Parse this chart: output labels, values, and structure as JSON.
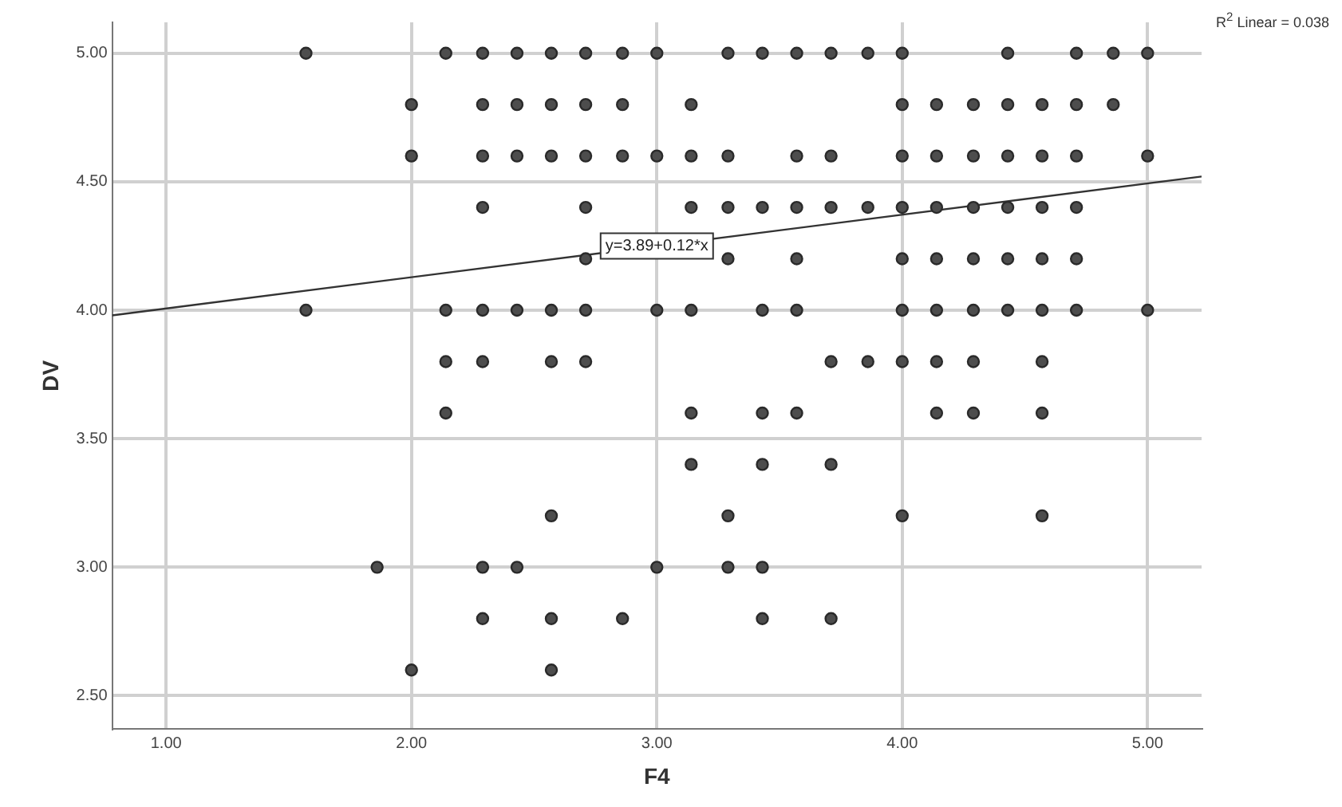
{
  "chart_data": {
    "type": "scatter",
    "xlabel": "F4",
    "ylabel": "DV",
    "xlim": [
      0.78,
      5.22
    ],
    "ylim": [
      2.37,
      5.12
    ],
    "xticks": [
      {
        "value": 1,
        "label": "1.00"
      },
      {
        "value": 2,
        "label": "2.00"
      },
      {
        "value": 3,
        "label": "3.00"
      },
      {
        "value": 4,
        "label": "4.00"
      },
      {
        "value": 5,
        "label": "5.00"
      }
    ],
    "yticks": [
      {
        "value": 2.5,
        "label": "2.50"
      },
      {
        "value": 3,
        "label": "3.00"
      },
      {
        "value": 3.5,
        "label": "3.50"
      },
      {
        "value": 4,
        "label": "4.00"
      },
      {
        "value": 4.5,
        "label": "4.50"
      },
      {
        "value": 5,
        "label": "5.00"
      }
    ],
    "grid": true,
    "legend": false,
    "marker": "circle",
    "annotations": [
      {
        "text": "y=3.89+0.12*x",
        "x": 3.0,
        "y": 4.25
      },
      "R$^{2}$ Linear = 0.038"
    ],
    "series": [
      {
        "color": "#4d4d4d",
        "x": [
          1.57,
          2.14,
          2.29,
          2.43,
          2.57,
          2.71,
          2.86,
          3.0,
          3.29,
          3.43,
          3.57,
          3.71,
          3.86,
          4.0,
          4.43,
          4.71,
          4.86,
          5.0,
          2.0,
          2.29,
          2.43,
          2.57,
          2.71,
          2.86,
          3.14,
          4.0,
          4.14,
          4.29,
          4.43,
          4.57,
          4.71,
          4.86,
          2.0,
          2.29,
          2.43,
          2.57,
          2.71,
          2.86,
          3.0,
          3.14,
          3.29,
          3.57,
          3.71,
          4.0,
          4.14,
          4.29,
          4.43,
          4.57,
          4.71,
          5.0,
          2.29,
          2.71,
          3.14,
          3.29,
          3.43,
          3.57,
          3.71,
          3.86,
          4.0,
          4.14,
          4.29,
          4.43,
          4.57,
          4.71,
          2.71,
          3.29,
          3.57,
          4.0,
          4.14,
          4.29,
          4.43,
          4.57,
          4.71,
          1.57,
          2.14,
          2.29,
          2.43,
          2.57,
          2.71,
          3.0,
          3.14,
          3.43,
          3.57,
          4.0,
          4.14,
          4.29,
          4.43,
          4.57,
          4.71,
          5.0,
          2.14,
          2.29,
          2.57,
          2.71,
          3.71,
          3.86,
          4.0,
          4.14,
          4.29,
          4.57,
          2.14,
          3.14,
          3.43,
          3.57,
          4.14,
          4.29,
          4.57,
          3.14,
          3.43,
          3.71,
          2.57,
          3.29,
          4.0,
          4.57,
          1.86,
          2.29,
          2.43,
          3.0,
          3.29,
          3.43,
          2.29,
          2.57,
          2.86,
          3.43,
          3.71,
          2.0,
          2.57
        ],
        "values": [
          5.0,
          5.0,
          5.0,
          5.0,
          5.0,
          5.0,
          5.0,
          5.0,
          5.0,
          5.0,
          5.0,
          5.0,
          5.0,
          5.0,
          5.0,
          5.0,
          5.0,
          5.0,
          4.8,
          4.8,
          4.8,
          4.8,
          4.8,
          4.8,
          4.8,
          4.8,
          4.8,
          4.8,
          4.8,
          4.8,
          4.8,
          4.8,
          4.6,
          4.6,
          4.6,
          4.6,
          4.6,
          4.6,
          4.6,
          4.6,
          4.6,
          4.6,
          4.6,
          4.6,
          4.6,
          4.6,
          4.6,
          4.6,
          4.6,
          4.6,
          4.4,
          4.4,
          4.4,
          4.4,
          4.4,
          4.4,
          4.4,
          4.4,
          4.4,
          4.4,
          4.4,
          4.4,
          4.4,
          4.4,
          4.2,
          4.2,
          4.2,
          4.2,
          4.2,
          4.2,
          4.2,
          4.2,
          4.2,
          4.0,
          4.0,
          4.0,
          4.0,
          4.0,
          4.0,
          4.0,
          4.0,
          4.0,
          4.0,
          4.0,
          4.0,
          4.0,
          4.0,
          4.0,
          4.0,
          4.0,
          3.8,
          3.8,
          3.8,
          3.8,
          3.8,
          3.8,
          3.8,
          3.8,
          3.8,
          3.8,
          3.6,
          3.6,
          3.6,
          3.6,
          3.6,
          3.6,
          3.6,
          3.4,
          3.4,
          3.4,
          3.2,
          3.2,
          3.2,
          3.2,
          3.0,
          3.0,
          3.0,
          3.0,
          3.0,
          3.0,
          2.8,
          2.8,
          2.8,
          2.8,
          2.8,
          2.6,
          2.6
        ]
      },
      {
        "type": "line",
        "color": "#333333",
        "marker": "none",
        "x": [
          0.78,
          5.22
        ],
        "values": [
          3.98,
          4.52
        ]
      }
    ]
  }
}
